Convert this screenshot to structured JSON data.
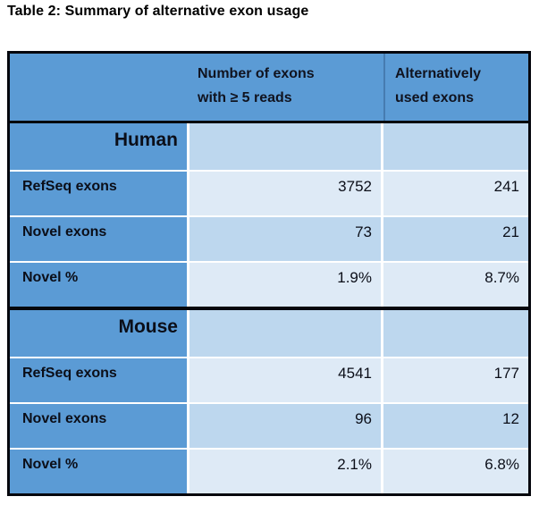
{
  "title": "Table 2: Summary of alternative exon usage",
  "header": {
    "col2_line1": "Number of exons",
    "col2_line2": "with ≥ 5 reads",
    "col3_line1": "Alternatively",
    "col3_line2": "used exons"
  },
  "sections": [
    {
      "name": "Human",
      "rows": [
        {
          "label": "RefSeq exons",
          "exons": "3752",
          "alt": "241"
        },
        {
          "label": "Novel exons",
          "exons": "73",
          "alt": "21"
        },
        {
          "label": "Novel %",
          "exons": "1.9%",
          "alt": "8.7%"
        }
      ]
    },
    {
      "name": "Mouse",
      "rows": [
        {
          "label": "RefSeq exons",
          "exons": "4541",
          "alt": "177"
        },
        {
          "label": "Novel exons",
          "exons": "96",
          "alt": "12"
        },
        {
          "label": "Novel %",
          "exons": "2.1%",
          "alt": "6.8%"
        }
      ]
    }
  ],
  "colors": {
    "header_blue": "#5b9bd5",
    "band_medium": "#bdd7ee",
    "band_light": "#deeaf6",
    "border_black": "#06070d",
    "gridline_white": "#ffffff"
  }
}
